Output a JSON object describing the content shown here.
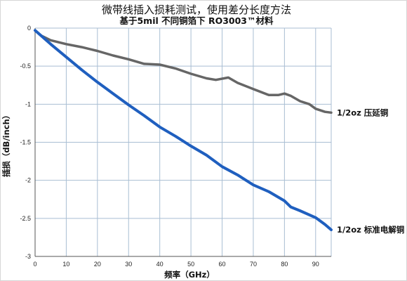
{
  "chart_data": {
    "type": "line",
    "title": "微带线插入损耗测试，使用差分长度方法",
    "subtitle": "基于5mil 不同铜箔下 RO3003™材料",
    "xlabel": "频率（GHz）",
    "ylabel": "插损（dB/inch）",
    "xlim": [
      0,
      95
    ],
    "ylim": [
      -3,
      0
    ],
    "x_ticks": [
      0,
      10,
      20,
      30,
      40,
      50,
      60,
      70,
      80,
      90
    ],
    "y_ticks": [
      0,
      -0.5,
      -1,
      -1.5,
      -2,
      -2.5,
      -3
    ],
    "y_tick_labels": [
      "0",
      "-0.5",
      "-1",
      "-1.5",
      "-2",
      "-2.5",
      "-3"
    ],
    "grid": true,
    "colors": {
      "grid": "#a9bed3",
      "axis": "#555555"
    },
    "series": [
      {
        "name": "1/2oz 压延铜",
        "color": "#666666",
        "x": [
          0,
          2,
          5,
          10,
          15,
          20,
          25,
          30,
          35,
          40,
          45,
          50,
          55,
          58,
          62,
          65,
          70,
          75,
          78,
          80,
          82,
          85,
          88,
          90,
          93,
          95
        ],
        "y": [
          -0.03,
          -0.1,
          -0.16,
          -0.21,
          -0.25,
          -0.3,
          -0.36,
          -0.41,
          -0.47,
          -0.48,
          -0.53,
          -0.6,
          -0.66,
          -0.68,
          -0.65,
          -0.72,
          -0.8,
          -0.88,
          -0.88,
          -0.86,
          -0.89,
          -0.96,
          -1.0,
          -1.06,
          -1.1,
          -1.11
        ]
      },
      {
        "name": "1/2oz 标准电解铜",
        "color": "#1f5fbf",
        "x": [
          0,
          5,
          10,
          15,
          20,
          25,
          30,
          35,
          40,
          45,
          50,
          55,
          60,
          65,
          70,
          75,
          80,
          82,
          85,
          90,
          93,
          95
        ],
        "y": [
          -0.03,
          -0.21,
          -0.38,
          -0.55,
          -0.71,
          -0.86,
          -1.01,
          -1.15,
          -1.3,
          -1.42,
          -1.55,
          -1.67,
          -1.82,
          -1.93,
          -2.06,
          -2.15,
          -2.27,
          -2.35,
          -2.4,
          -2.49,
          -2.58,
          -2.65
        ]
      }
    ]
  }
}
